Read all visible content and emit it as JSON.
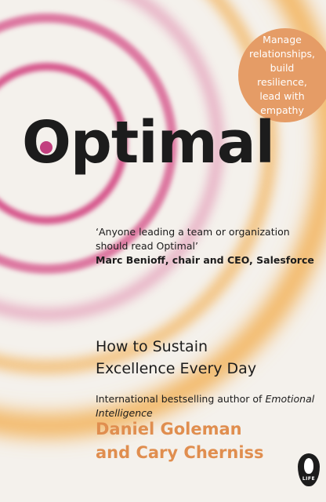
{
  "cover": {
    "badge": [
      "Manage",
      "relationships,",
      "build resilience,",
      "lead with",
      "empathy"
    ],
    "title_first": "O",
    "title_rest": "ptimal",
    "quote_text": "‘Anyone leading a team or organization should read Optimal’",
    "quote_attribution": "Marc Benioff, chair and CEO, Salesforce",
    "subtitle_line1": "How to Sustain",
    "subtitle_line2": "Excellence Every Day",
    "credit_prefix": "International bestselling author of ",
    "credit_book": "Emotional Intelligence",
    "author_line1": "Daniel Goleman",
    "author_line2": "and Cary Cherniss",
    "publisher_mark": "LIFE"
  },
  "colors": {
    "background": "#f4f1ec",
    "ring_pink": "#d75a8e",
    "ring_orange": "#f3b561",
    "accent_dot": "#c2407f",
    "badge": "#e59c66",
    "author": "#e08e4f",
    "text": "#1c1c1c"
  }
}
